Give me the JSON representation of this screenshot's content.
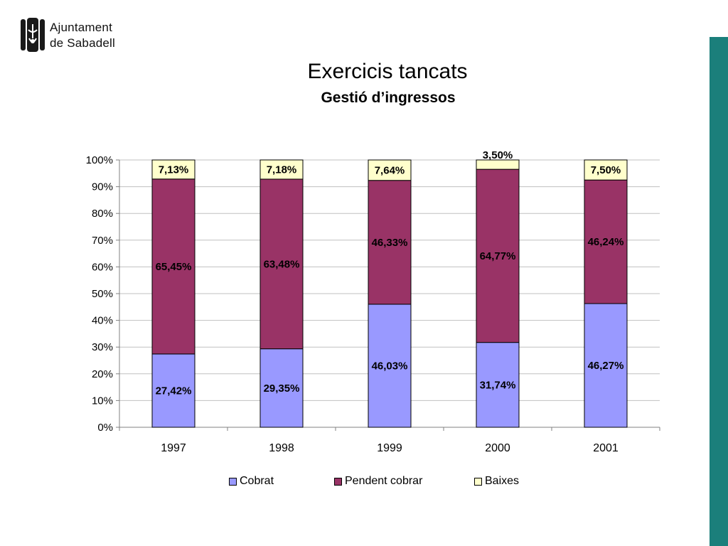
{
  "logo": {
    "line1": "Ajuntament",
    "line2": "de Sabadell"
  },
  "header": {
    "title": "Exercicis tancats",
    "subtitle": "Gestió d’ingressos"
  },
  "colors": {
    "band": "#1b7f7b",
    "cobrat": "#9999ff",
    "pendent": "#993366",
    "baixes": "#ffffcc"
  },
  "chart_data": {
    "type": "bar",
    "stacked": true,
    "title": "",
    "xlabel": "",
    "ylabel": "",
    "categories": [
      "1997",
      "1998",
      "1999",
      "2000",
      "2001"
    ],
    "ylim": [
      0,
      100
    ],
    "yticks": [
      "0%",
      "10%",
      "20%",
      "30%",
      "40%",
      "50%",
      "60%",
      "70%",
      "80%",
      "90%",
      "100%"
    ],
    "grid": true,
    "legend_position": "bottom",
    "series": [
      {
        "name": "Cobrat",
        "color": "#9999ff",
        "values": [
          27.42,
          29.35,
          46.03,
          31.74,
          46.27
        ],
        "labels": [
          "27,42%",
          "29,35%",
          "46,03%",
          "31,74%",
          "46,27%"
        ]
      },
      {
        "name": "Pendent cobrar",
        "color": "#993366",
        "values": [
          65.45,
          63.48,
          46.33,
          64.77,
          46.24
        ],
        "labels": [
          "65,45%",
          "63,48%",
          "46,33%",
          "64,77%",
          "46,24%"
        ]
      },
      {
        "name": "Baixes",
        "color": "#ffffcc",
        "values": [
          7.13,
          7.18,
          7.64,
          3.5,
          7.5
        ],
        "labels": [
          "7,13%",
          "7,18%",
          "7,64%",
          "3,50%",
          "7,50%"
        ]
      }
    ]
  }
}
